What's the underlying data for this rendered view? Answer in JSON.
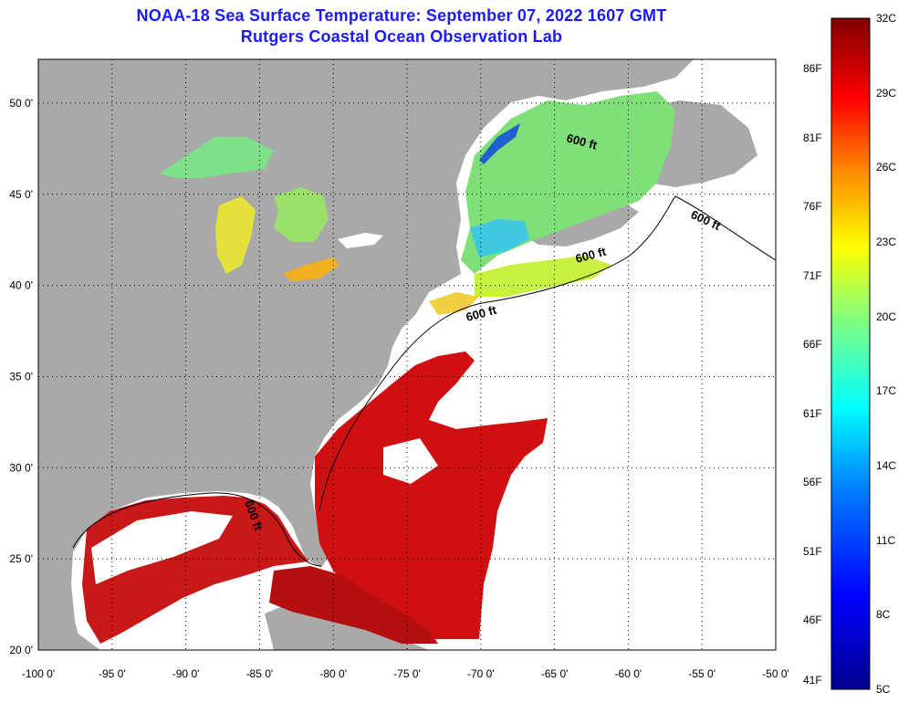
{
  "title": {
    "line1": "NOAA-18 Sea Surface Temperature:  September 07, 2022 1607 GMT",
    "line2": "Rutgers Coastal Ocean Observation Lab"
  },
  "colors": {
    "land": "#a9a9a9",
    "no_data": "#ffffff",
    "title": "#1a1aff",
    "grid": "#000000"
  },
  "map": {
    "lon_ticks": [
      "-100 0'",
      "-95 0'",
      "-90 0'",
      "-85 0'",
      "-80 0'",
      "-75 0'",
      "-70 0'",
      "-65 0'",
      "-60 0'",
      "-55 0'",
      "-50 0'"
    ],
    "lat_ticks": [
      "50 0'",
      "45 0'",
      "40 0'",
      "35 0'",
      "30 0'",
      "25 0'",
      "20 0'"
    ],
    "contour_labels": [
      "600 ft",
      "600 ft",
      "600 ft",
      "600 ft",
      "600 ft"
    ]
  },
  "colorbar": {
    "celsius": [
      "32C",
      "29C",
      "26C",
      "23C",
      "20C",
      "17C",
      "14C",
      "11C",
      "8C",
      "5C"
    ],
    "fahrenheit": [
      "86F",
      "81F",
      "76F",
      "71F",
      "66F",
      "61F",
      "56F",
      "51F",
      "46F",
      "41F"
    ],
    "range_c": [
      5,
      32
    ]
  }
}
